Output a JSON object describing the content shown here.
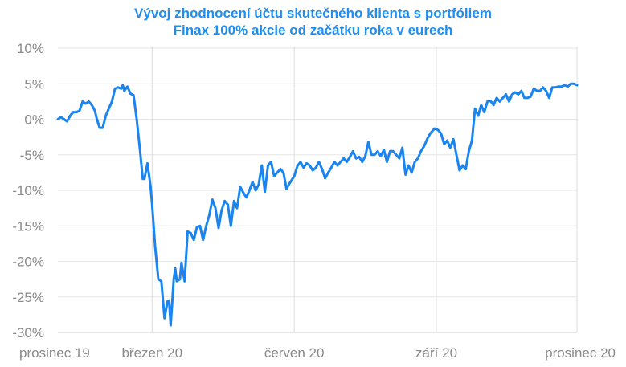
{
  "chart_data": {
    "type": "line",
    "title_lines": [
      "Vývoj zhodnocení účtu skutečného klienta s portfóliem",
      "Finax 100% akcie od začátku roka v eurech"
    ],
    "xlabel": "",
    "ylabel": "",
    "x_ticks": [
      {
        "label": "prosinec 19",
        "date": "2019-12-31"
      },
      {
        "label": "březen 20",
        "date": "2020-03-01"
      },
      {
        "label": "červen 20",
        "date": "2020-06-01"
      },
      {
        "label": "září 20",
        "date": "2020-09-01"
      },
      {
        "label": "prosinec 20",
        "date": "2020-12-01"
      }
    ],
    "y_ticks": [
      10,
      5,
      0,
      -5,
      -10,
      -15,
      -20,
      -25,
      -30
    ],
    "y_tick_labels": [
      "10%",
      "5%",
      "0%",
      "-5%",
      "-10%",
      "-15%",
      "-20%",
      "-25%",
      "-30%"
    ],
    "ylim": [
      -30,
      10
    ],
    "xlim": [
      "2019-12-31",
      "2020-12-01"
    ],
    "grid": {
      "vertical": true,
      "horizontal": true
    },
    "legend": "none",
    "series": [
      {
        "color": "#1a85f0",
        "points": [
          [
            "2019-12-31",
            0.0
          ],
          [
            "2020-01-02",
            0.3
          ],
          [
            "2020-01-04",
            0.0
          ],
          [
            "2020-01-06",
            -0.3
          ],
          [
            "2020-01-08",
            0.5
          ],
          [
            "2020-01-10",
            1.0
          ],
          [
            "2020-01-12",
            1.0
          ],
          [
            "2020-01-14",
            1.2
          ],
          [
            "2020-01-16",
            2.5
          ],
          [
            "2020-01-18",
            2.2
          ],
          [
            "2020-01-20",
            2.5
          ],
          [
            "2020-01-22",
            2.0
          ],
          [
            "2020-01-24",
            1.2
          ],
          [
            "2020-01-25",
            0.2
          ],
          [
            "2020-01-27",
            -1.2
          ],
          [
            "2020-01-29",
            -1.2
          ],
          [
            "2020-01-31",
            0.5
          ],
          [
            "2020-02-02",
            1.5
          ],
          [
            "2020-02-04",
            2.5
          ],
          [
            "2020-02-06",
            4.3
          ],
          [
            "2020-02-08",
            4.5
          ],
          [
            "2020-02-10",
            4.3
          ],
          [
            "2020-02-11",
            4.8
          ],
          [
            "2020-02-12",
            4.0
          ],
          [
            "2020-02-14",
            4.6
          ],
          [
            "2020-02-16",
            3.6
          ],
          [
            "2020-02-18",
            3.4
          ],
          [
            "2020-02-20",
            0.0
          ],
          [
            "2020-02-22",
            -4.0
          ],
          [
            "2020-02-24",
            -8.4
          ],
          [
            "2020-02-25",
            -8.4
          ],
          [
            "2020-02-27",
            -6.2
          ],
          [
            "2020-02-29",
            -9.5
          ],
          [
            "2020-03-01",
            -12.0
          ],
          [
            "2020-03-03",
            -18.0
          ],
          [
            "2020-03-05",
            -22.5
          ],
          [
            "2020-03-07",
            -22.8
          ],
          [
            "2020-03-09",
            -28.0
          ],
          [
            "2020-03-11",
            -25.6
          ],
          [
            "2020-03-12",
            -25.5
          ],
          [
            "2020-03-13",
            -29.0
          ],
          [
            "2020-03-15",
            -22.5
          ],
          [
            "2020-03-16",
            -21.0
          ],
          [
            "2020-03-17",
            -22.8
          ],
          [
            "2020-03-19",
            -22.5
          ],
          [
            "2020-03-20",
            -20.2
          ],
          [
            "2020-03-22",
            -22.8
          ],
          [
            "2020-03-24",
            -15.8
          ],
          [
            "2020-03-26",
            -16.0
          ],
          [
            "2020-03-28",
            -17.0
          ],
          [
            "2020-03-30",
            -15.2
          ],
          [
            "2020-04-01",
            -15.0
          ],
          [
            "2020-04-03",
            -17.0
          ],
          [
            "2020-04-05",
            -15.0
          ],
          [
            "2020-04-07",
            -13.5
          ],
          [
            "2020-04-09",
            -11.3
          ],
          [
            "2020-04-11",
            -12.5
          ],
          [
            "2020-04-13",
            -15.3
          ],
          [
            "2020-04-15",
            -12.8
          ],
          [
            "2020-04-17",
            -11.5
          ],
          [
            "2020-04-19",
            -12.0
          ],
          [
            "2020-04-21",
            -15.0
          ],
          [
            "2020-04-23",
            -11.5
          ],
          [
            "2020-04-25",
            -12.5
          ],
          [
            "2020-04-27",
            -9.5
          ],
          [
            "2020-04-29",
            -10.3
          ],
          [
            "2020-05-01",
            -11.0
          ],
          [
            "2020-05-03",
            -10.0
          ],
          [
            "2020-05-05",
            -8.8
          ],
          [
            "2020-05-07",
            -10.0
          ],
          [
            "2020-05-09",
            -9.2
          ],
          [
            "2020-05-11",
            -6.5
          ],
          [
            "2020-05-13",
            -10.2
          ],
          [
            "2020-05-15",
            -6.5
          ],
          [
            "2020-05-17",
            -6.0
          ],
          [
            "2020-05-19",
            -8.0
          ],
          [
            "2020-05-21",
            -7.5
          ],
          [
            "2020-05-23",
            -7.0
          ],
          [
            "2020-05-25",
            -7.5
          ],
          [
            "2020-05-27",
            -9.8
          ],
          [
            "2020-05-29",
            -9.0
          ],
          [
            "2020-06-01",
            -8.0
          ],
          [
            "2020-06-03",
            -6.6
          ],
          [
            "2020-06-05",
            -6.0
          ],
          [
            "2020-06-07",
            -6.8
          ],
          [
            "2020-06-09",
            -6.2
          ],
          [
            "2020-06-11",
            -6.5
          ],
          [
            "2020-06-13",
            -7.2
          ],
          [
            "2020-06-15",
            -6.8
          ],
          [
            "2020-06-17",
            -6.0
          ],
          [
            "2020-06-19",
            -7.0
          ],
          [
            "2020-06-21",
            -8.3
          ],
          [
            "2020-06-23",
            -7.5
          ],
          [
            "2020-06-25",
            -6.8
          ],
          [
            "2020-06-27",
            -6.0
          ],
          [
            "2020-06-29",
            -6.5
          ],
          [
            "2020-07-01",
            -6.0
          ],
          [
            "2020-07-03",
            -5.5
          ],
          [
            "2020-07-05",
            -6.0
          ],
          [
            "2020-07-07",
            -5.3
          ],
          [
            "2020-07-09",
            -4.5
          ],
          [
            "2020-07-11",
            -5.5
          ],
          [
            "2020-07-13",
            -5.3
          ],
          [
            "2020-07-15",
            -6.0
          ],
          [
            "2020-07-17",
            -5.2
          ],
          [
            "2020-07-19",
            -3.2
          ],
          [
            "2020-07-21",
            -5.0
          ],
          [
            "2020-07-23",
            -5.0
          ],
          [
            "2020-07-25",
            -4.5
          ],
          [
            "2020-07-27",
            -5.2
          ],
          [
            "2020-07-29",
            -4.3
          ],
          [
            "2020-07-31",
            -6.0
          ],
          [
            "2020-08-02",
            -4.5
          ],
          [
            "2020-08-04",
            -4.5
          ],
          [
            "2020-08-06",
            -5.0
          ],
          [
            "2020-08-08",
            -5.5
          ],
          [
            "2020-08-10",
            -4.0
          ],
          [
            "2020-08-12",
            -7.8
          ],
          [
            "2020-08-14",
            -6.5
          ],
          [
            "2020-08-16",
            -7.5
          ],
          [
            "2020-08-18",
            -6.0
          ],
          [
            "2020-08-20",
            -5.5
          ],
          [
            "2020-08-22",
            -4.5
          ],
          [
            "2020-08-24",
            -3.8
          ],
          [
            "2020-08-26",
            -2.8
          ],
          [
            "2020-08-28",
            -2.0
          ],
          [
            "2020-08-30",
            -1.5
          ],
          [
            "2020-08-31",
            -1.3
          ],
          [
            "2020-09-02",
            -1.5
          ],
          [
            "2020-09-04",
            -2.0
          ],
          [
            "2020-09-06",
            -3.5
          ],
          [
            "2020-09-08",
            -3.0
          ],
          [
            "2020-09-10",
            -4.0
          ],
          [
            "2020-09-12",
            -2.8
          ],
          [
            "2020-09-14",
            -5.0
          ],
          [
            "2020-09-16",
            -7.2
          ],
          [
            "2020-09-18",
            -6.5
          ],
          [
            "2020-09-20",
            -7.0
          ],
          [
            "2020-09-22",
            -4.5
          ],
          [
            "2020-09-24",
            -3.0
          ],
          [
            "2020-09-26",
            1.5
          ],
          [
            "2020-09-28",
            0.5
          ],
          [
            "2020-09-30",
            2.0
          ],
          [
            "2020-10-02",
            1.0
          ],
          [
            "2020-10-04",
            2.5
          ],
          [
            "2020-10-06",
            2.6
          ],
          [
            "2020-10-08",
            2.0
          ],
          [
            "2020-10-10",
            3.0
          ],
          [
            "2020-10-12",
            2.5
          ],
          [
            "2020-10-14",
            3.0
          ],
          [
            "2020-10-16",
            3.5
          ],
          [
            "2020-10-18",
            2.5
          ],
          [
            "2020-10-20",
            3.5
          ],
          [
            "2020-10-22",
            3.8
          ],
          [
            "2020-10-24",
            3.5
          ],
          [
            "2020-10-26",
            4.0
          ],
          [
            "2020-10-28",
            3.0
          ],
          [
            "2020-10-30",
            3.0
          ],
          [
            "2020-11-01",
            3.2
          ],
          [
            "2020-11-03",
            4.3
          ],
          [
            "2020-11-05",
            4.0
          ],
          [
            "2020-11-07",
            4.0
          ],
          [
            "2020-11-09",
            4.5
          ],
          [
            "2020-11-11",
            4.0
          ],
          [
            "2020-11-13",
            3.0
          ],
          [
            "2020-11-15",
            4.5
          ],
          [
            "2020-11-17",
            4.5
          ],
          [
            "2020-11-19",
            4.6
          ],
          [
            "2020-11-21",
            4.6
          ],
          [
            "2020-11-23",
            4.8
          ],
          [
            "2020-11-25",
            4.6
          ],
          [
            "2020-11-27",
            5.0
          ],
          [
            "2020-11-29",
            5.0
          ],
          [
            "2020-12-01",
            4.8
          ]
        ]
      }
    ]
  }
}
